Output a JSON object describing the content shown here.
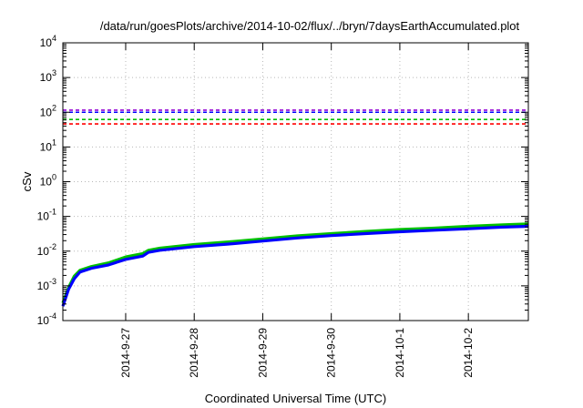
{
  "chart_data": {
    "type": "line",
    "title": "/data/run/goesPlots/archive/2014-10-02/flux/../bryn/7daysEarthAccumulated.plot",
    "xlabel": "Coordinated Universal Time (UTC)",
    "ylabel": "cSv",
    "yscale": "log",
    "ylim": [
      0.0001,
      10000
    ],
    "xlim": [
      "2014-09-26 02:00",
      "2014-10-02 21:00"
    ],
    "grid": true,
    "x_ticks": [
      "2014-9-27",
      "2014-9-28",
      "2014-9-29",
      "2014-9-30",
      "2014-10-1",
      "2014-10-2"
    ],
    "y_ticks": [
      {
        "value": 0.0001,
        "base": "10",
        "exp": "-4"
      },
      {
        "value": 0.001,
        "base": "10",
        "exp": "-3"
      },
      {
        "value": 0.01,
        "base": "10",
        "exp": "-2"
      },
      {
        "value": 0.1,
        "base": "10",
        "exp": "-1"
      },
      {
        "value": 1,
        "base": "10",
        "exp": "0"
      },
      {
        "value": 10,
        "base": "10",
        "exp": "1"
      },
      {
        "value": 100,
        "base": "10",
        "exp": "2"
      },
      {
        "value": 1000,
        "base": "10",
        "exp": "3"
      },
      {
        "value": 10000,
        "base": "10",
        "exp": "4"
      }
    ],
    "threshold_lines": [
      {
        "value": 115,
        "color": "#9400d3",
        "style": "dashed"
      },
      {
        "value": 100,
        "color": "#0000ff",
        "style": "dashed"
      },
      {
        "value": 62,
        "color": "#00c000",
        "style": "dashed"
      },
      {
        "value": 46,
        "color": "#ff0000",
        "style": "dashed"
      }
    ],
    "series": [
      {
        "color": "#00c000",
        "points": [
          [
            "2014-09-26 02:00",
            0.00032
          ],
          [
            "2014-09-26 04:00",
            0.0009
          ],
          [
            "2014-09-26 06:00",
            0.0019
          ],
          [
            "2014-09-26 08:00",
            0.0028
          ],
          [
            "2014-09-26 12:00",
            0.0036
          ],
          [
            "2014-09-26 18:00",
            0.0046
          ],
          [
            "2014-09-27 00:00",
            0.0068
          ],
          [
            "2014-09-27 06:00",
            0.0085
          ],
          [
            "2014-09-27 08:00",
            0.0106
          ],
          [
            "2014-09-27 12:00",
            0.0122
          ],
          [
            "2014-09-28 00:00",
            0.0155
          ],
          [
            "2014-09-28 12:00",
            0.0185
          ],
          [
            "2014-09-29 00:00",
            0.0225
          ],
          [
            "2014-09-29 12:00",
            0.0275
          ],
          [
            "2014-09-30 00:00",
            0.032
          ],
          [
            "2014-09-30 12:00",
            0.037
          ],
          [
            "2014-10-01 00:00",
            0.042
          ],
          [
            "2014-10-01 12:00",
            0.046
          ],
          [
            "2014-10-02 00:00",
            0.052
          ],
          [
            "2014-10-02 12:00",
            0.057
          ],
          [
            "2014-10-02 21:00",
            0.061
          ]
        ]
      },
      {
        "color": "#0000ff",
        "points": [
          [
            "2014-09-26 02:00",
            0.00026
          ],
          [
            "2014-09-26 04:00",
            0.0008
          ],
          [
            "2014-09-26 06:00",
            0.0016
          ],
          [
            "2014-09-26 08:00",
            0.0025
          ],
          [
            "2014-09-26 12:00",
            0.0032
          ],
          [
            "2014-09-26 18:00",
            0.004
          ],
          [
            "2014-09-27 00:00",
            0.0058
          ],
          [
            "2014-09-27 06:00",
            0.0072
          ],
          [
            "2014-09-27 08:00",
            0.0092
          ],
          [
            "2014-09-27 12:00",
            0.0106
          ],
          [
            "2014-09-28 00:00",
            0.0135
          ],
          [
            "2014-09-28 12:00",
            0.016
          ],
          [
            "2014-09-29 00:00",
            0.0195
          ],
          [
            "2014-09-29 12:00",
            0.024
          ],
          [
            "2014-09-30 00:00",
            0.028
          ],
          [
            "2014-09-30 12:00",
            0.032
          ],
          [
            "2014-10-01 00:00",
            0.036
          ],
          [
            "2014-10-01 12:00",
            0.04
          ],
          [
            "2014-10-02 00:00",
            0.044
          ],
          [
            "2014-10-02 12:00",
            0.049
          ],
          [
            "2014-10-02 21:00",
            0.052
          ]
        ]
      }
    ]
  }
}
